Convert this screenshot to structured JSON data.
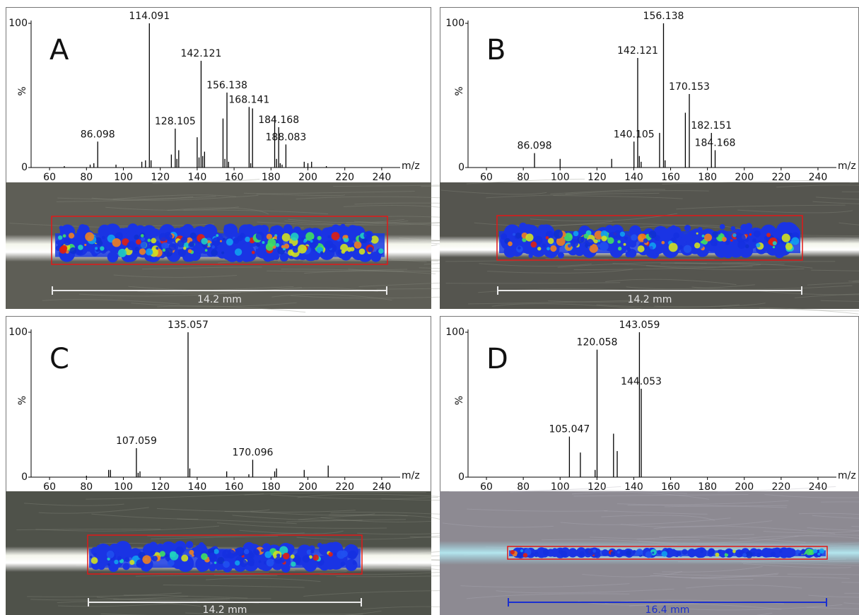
{
  "chart_data": [
    {
      "type": "spectrum",
      "title": "A",
      "color": "#000000",
      "x": [
        68,
        82,
        84,
        86.098,
        96,
        110,
        112,
        114.091,
        115,
        126,
        128.105,
        129,
        130,
        140,
        141,
        142.121,
        143,
        144,
        154,
        155,
        156.138,
        157,
        168.141,
        169,
        170,
        182,
        183,
        184.168,
        185,
        186,
        188.083,
        198,
        200,
        202,
        210
      ],
      "values": [
        1,
        2,
        3,
        18,
        2,
        4,
        5,
        100,
        5,
        9,
        27,
        6,
        12,
        21,
        7,
        74,
        8,
        11,
        34,
        6,
        52,
        4,
        42,
        3,
        41,
        36,
        6,
        28,
        3,
        2,
        16,
        4,
        3,
        4,
        1
      ],
      "peak_labels": [
        null,
        null,
        null,
        "86.098",
        null,
        null,
        null,
        "114.091",
        null,
        null,
        "128.105",
        null,
        null,
        null,
        null,
        "142.121",
        null,
        null,
        null,
        null,
        "156.138",
        null,
        "168.141",
        null,
        null,
        null,
        null,
        "184.168",
        null,
        null,
        "188.083",
        null,
        null,
        null,
        null
      ],
      "xlim": [
        50,
        250
      ],
      "xticks": [
        60,
        80,
        100,
        120,
        140,
        160,
        180,
        200,
        220,
        240
      ],
      "ylim": [
        0,
        100
      ],
      "yticks": [
        0,
        100
      ],
      "xlabel": "m/z",
      "ylabel": "%",
      "scale_label": "14.2 mm",
      "scale_color": "#e8e8e8"
    },
    {
      "type": "spectrum",
      "title": "B",
      "color": "#000000",
      "x": [
        86.098,
        100,
        128,
        140.105,
        142.121,
        143,
        144,
        154,
        156.138,
        157,
        168,
        170.153,
        182.151,
        184.168
      ],
      "values": [
        10,
        6,
        6,
        18,
        76,
        8,
        4,
        24,
        100,
        5,
        38,
        51,
        24,
        12
      ],
      "peak_labels": [
        "86.098",
        null,
        null,
        "140.105",
        "142.121",
        null,
        null,
        null,
        "156.138",
        null,
        null,
        "170.153",
        "182.151",
        "184.168"
      ],
      "xlim": [
        50,
        250
      ],
      "xticks": [
        60,
        80,
        100,
        120,
        140,
        160,
        180,
        200,
        220,
        240
      ],
      "ylim": [
        0,
        100
      ],
      "yticks": [
        0,
        100
      ],
      "xlabel": "m/z",
      "ylabel": "%",
      "scale_label": "14.2 mm",
      "scale_color": "#e8e8e8"
    },
    {
      "type": "spectrum",
      "title": "C",
      "color": "#000000",
      "x": [
        80,
        92,
        93,
        107.059,
        108,
        109,
        135.057,
        136,
        156,
        168,
        170.096,
        182,
        183,
        198,
        211
      ],
      "values": [
        1,
        5,
        5,
        20,
        3,
        4,
        100,
        6,
        4,
        2,
        12,
        4,
        6,
        5,
        8
      ],
      "peak_labels": [
        null,
        null,
        null,
        "107.059",
        null,
        null,
        "135.057",
        null,
        null,
        null,
        "170.096",
        null,
        null,
        null,
        null
      ],
      "xlim": [
        50,
        250
      ],
      "xticks": [
        60,
        80,
        100,
        120,
        140,
        160,
        180,
        200,
        220,
        240
      ],
      "ylim": [
        0,
        100
      ],
      "yticks": [
        0,
        100
      ],
      "xlabel": "m/z",
      "ylabel": "%",
      "scale_label": "14.2 mm",
      "scale_color": "#e8e8e8"
    },
    {
      "type": "spectrum",
      "title": "D",
      "color": "#000000",
      "x": [
        105.047,
        111,
        119,
        120.058,
        129,
        131,
        143.059,
        144.053
      ],
      "values": [
        28,
        17,
        5,
        88,
        30,
        18,
        100,
        61
      ],
      "peak_labels": [
        "105.047",
        null,
        null,
        "120.058",
        null,
        null,
        "143.059",
        "144.053"
      ],
      "xlim": [
        50,
        250
      ],
      "xticks": [
        60,
        80,
        100,
        120,
        140,
        160,
        180,
        200,
        220,
        240
      ],
      "ylim": [
        0,
        100
      ],
      "yticks": [
        0,
        100
      ],
      "xlabel": "m/z",
      "ylabel": "%",
      "scale_label": "16.4 mm",
      "scale_color": "#1a2fd0"
    }
  ]
}
